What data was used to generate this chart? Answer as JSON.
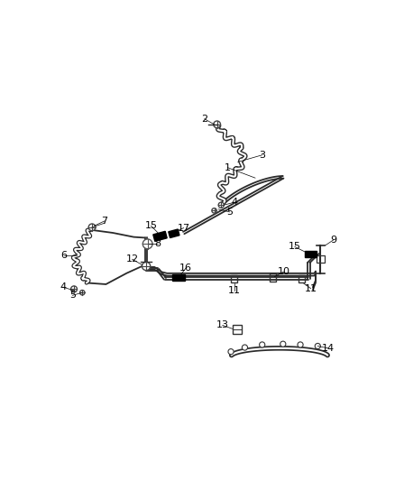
{
  "bg_color": "#ffffff",
  "line_color": "#2a2a2a",
  "label_color": "#000000",
  "figsize": [
    4.38,
    5.33
  ],
  "dpi": 100,
  "lw_main": 1.4,
  "lw_thin": 0.9,
  "lw_hose": 1.2,
  "note_parts": {
    "main_tube_label": "1",
    "right_hose_top": "2",
    "right_hose_body": "3",
    "right_fitting_upper": "4",
    "right_fitting_lower": "5",
    "left_hose_body": "6",
    "left_hose_top": "7",
    "grommet": "8",
    "bracket_right": "9",
    "clip_mid": "10",
    "clip_left": "11",
    "clip_right": "11",
    "junction": "12",
    "small_clip": "13",
    "curved_bracket": "14",
    "isolator_left": "15",
    "isolator_right": "15",
    "isolator_mid": "16",
    "isolator_17": "17"
  }
}
